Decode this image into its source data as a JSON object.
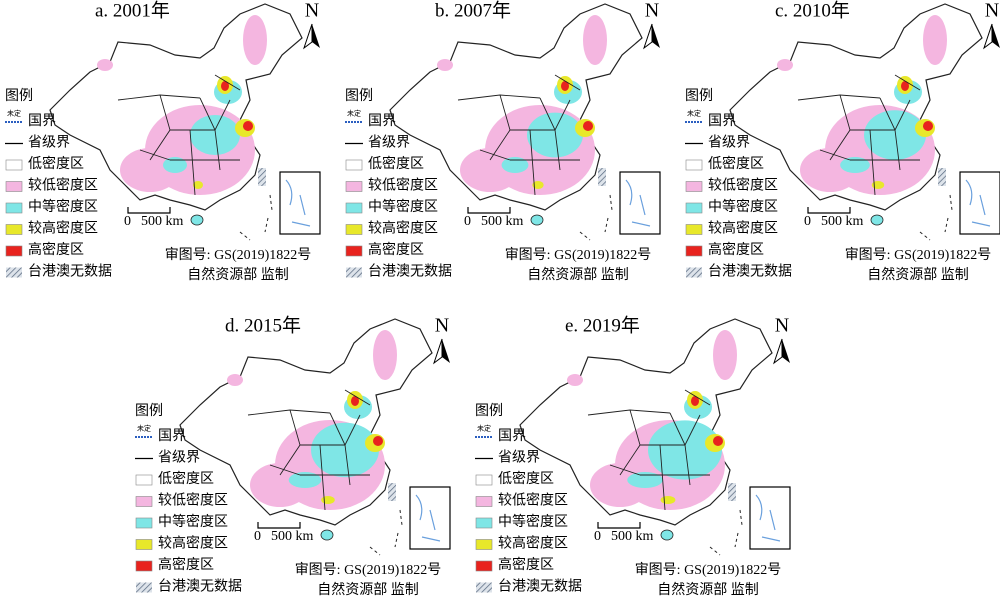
{
  "panels": [
    {
      "title": "a. 2001年"
    },
    {
      "title": "b. 2007年"
    },
    {
      "title": "c. 2010年"
    },
    {
      "title": "d. 2015年"
    },
    {
      "title": "e. 2019年"
    }
  ],
  "legend": {
    "title": "图例",
    "undetermined": "未定",
    "items": [
      "国界",
      "省级界",
      "低密度区",
      "较低密度区",
      "中等密度区",
      "较高密度区",
      "高密度区",
      "台港澳无数据"
    ]
  },
  "north": "N",
  "scale": {
    "zero": "0",
    "label": "500 km"
  },
  "approval": "审图号: GS(2019)1822号",
  "producer": "自然资源部 监制"
}
